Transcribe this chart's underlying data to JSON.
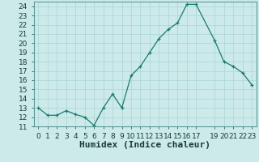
{
  "x": [
    0,
    1,
    2,
    3,
    4,
    5,
    6,
    7,
    8,
    9,
    10,
    11,
    12,
    13,
    14,
    15,
    16,
    17,
    19,
    20,
    21,
    22,
    23
  ],
  "y": [
    13.0,
    12.2,
    12.2,
    12.7,
    12.3,
    12.0,
    11.1,
    13.0,
    14.5,
    13.0,
    16.5,
    17.5,
    19.0,
    20.5,
    21.5,
    22.2,
    24.2,
    24.2,
    20.3,
    18.0,
    17.5,
    16.8,
    15.5
  ],
  "xlabel": "Humidex (Indice chaleur)",
  "xlim": [
    -0.5,
    23.5
  ],
  "ylim": [
    11.0,
    24.5
  ],
  "yticks": [
    11,
    12,
    13,
    14,
    15,
    16,
    17,
    18,
    19,
    20,
    21,
    22,
    23,
    24
  ],
  "xtick_positions": [
    0,
    1,
    2,
    3,
    4,
    5,
    6,
    7,
    8,
    9,
    10,
    11,
    12,
    13,
    14,
    15,
    16,
    17,
    19,
    20,
    21,
    22,
    23
  ],
  "xtick_labels": [
    "0",
    "1",
    "2",
    "3",
    "4",
    "5",
    "6",
    "7",
    "8",
    "9",
    "10",
    "11",
    "12",
    "13",
    "14",
    "15",
    "16",
    "17",
    "19",
    "20",
    "21",
    "22",
    "23"
  ],
  "line_color": "#1a7a6e",
  "marker": "+",
  "bg_color": "#cceaea",
  "grid_color": "#aad4d4",
  "tick_fontsize": 6.5,
  "xlabel_fontsize": 8
}
